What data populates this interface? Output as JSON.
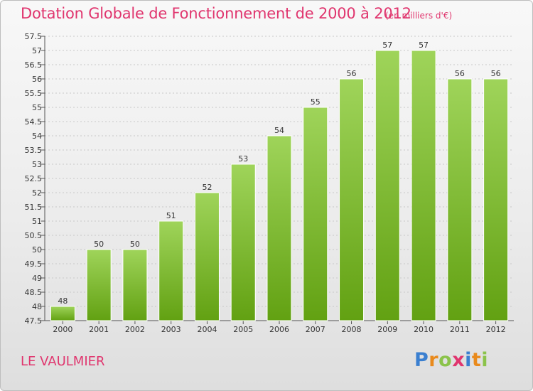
{
  "title": "Dotation Globale de Fonctionnement de 2000 à 2012",
  "subtitle": "(en milliers d'€)",
  "commune": "LE VAULMIER",
  "brand": {
    "text": "Proxiti",
    "letters": [
      {
        "ch": "P",
        "color": "#3a7fd0"
      },
      {
        "ch": "r",
        "color": "#e98a1c"
      },
      {
        "ch": "o",
        "color": "#8bc34a"
      },
      {
        "ch": "x",
        "color": "#e0356e"
      },
      {
        "ch": "i",
        "color": "#3a7fd0"
      },
      {
        "ch": "t",
        "color": "#e98a1c"
      },
      {
        "ch": "i",
        "color": "#8bc34a"
      }
    ]
  },
  "colors": {
    "title": "#e0356e",
    "bar_light": "#9fd45a",
    "bar_dark": "#62a112",
    "grid": "#c8c8c8"
  },
  "chart_data": {
    "type": "bar",
    "title": "Dotation Globale de Fonctionnement de 2000 à 2012",
    "subtitle": "(en milliers d'€)",
    "xlabel": "",
    "ylabel": "",
    "categories": [
      "2000",
      "2001",
      "2002",
      "2003",
      "2004",
      "2005",
      "2006",
      "2007",
      "2008",
      "2009",
      "2010",
      "2011",
      "2012"
    ],
    "values": [
      48,
      50,
      50,
      51,
      52,
      53,
      54,
      55,
      56,
      57,
      57,
      56,
      56
    ],
    "data_labels": [
      "48",
      "50",
      "50",
      "51",
      "52",
      "53",
      "54",
      "55",
      "56",
      "57",
      "57",
      "56",
      "56"
    ],
    "ylim": [
      47.5,
      57.5
    ],
    "yticks": [
      47.5,
      48,
      48.5,
      49,
      49.5,
      50,
      50.5,
      51,
      51.5,
      52,
      52.5,
      53,
      53.5,
      54,
      54.5,
      55,
      55.5,
      56,
      56.5,
      57,
      57.5
    ],
    "ytick_labels": [
      "47.5",
      "48",
      "48.5",
      "49",
      "49.5",
      "50",
      "50.5",
      "51",
      "51.5",
      "52",
      "52.5",
      "53",
      "53.5",
      "54",
      "54.5",
      "55",
      "55.5",
      "56",
      "56.5",
      "57",
      "57.5"
    ],
    "grid": true,
    "legend": "none"
  }
}
